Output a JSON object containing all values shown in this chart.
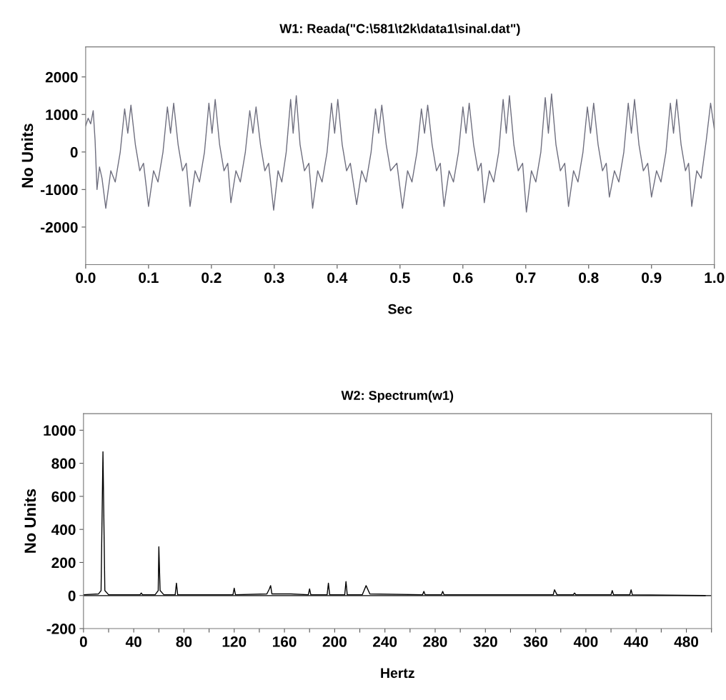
{
  "chart_data": [
    {
      "type": "line",
      "title": "W1: Reada(\"C:\\581\\t2k\\data1\\sinal.dat\")",
      "xlabel": "Sec",
      "ylabel": "No Units",
      "xlim": [
        0,
        1
      ],
      "ylim": [
        -3000,
        2800
      ],
      "xticks": [
        {
          "value": 0,
          "label": "0.0"
        },
        0.1,
        0.2,
        0.3,
        0.4,
        0.5,
        0.6,
        0.7,
        0.8,
        0.9,
        {
          "value": 1,
          "label": "1.0"
        }
      ],
      "yticks": [
        -2000,
        -1000,
        0,
        1000,
        2000
      ],
      "grid": false,
      "marker": "none",
      "line_style": "solid",
      "series": [
        {
          "color": "#6e6e7e",
          "x": [
            0,
            0.004,
            0.008,
            0.012,
            0.015,
            0.018,
            0.022,
            0.026,
            0.032,
            0.04,
            0.047,
            0.055,
            0.062,
            0.067,
            0.072,
            0.079,
            0.086,
            0.092,
            0.1,
            0.108,
            0.115,
            0.123,
            0.13,
            0.135,
            0.14,
            0.147,
            0.154,
            0.16,
            0.166,
            0.174,
            0.181,
            0.189,
            0.196,
            0.201,
            0.206,
            0.213,
            0.22,
            0.226,
            0.231,
            0.239,
            0.246,
            0.254,
            0.261,
            0.266,
            0.271,
            0.278,
            0.285,
            0.291,
            0.299,
            0.306,
            0.312,
            0.319,
            0.326,
            0.33,
            0.335,
            0.341,
            0.348,
            0.355,
            0.361,
            0.369,
            0.376,
            0.384,
            0.391,
            0.396,
            0.401,
            0.408,
            0.415,
            0.421,
            0.431,
            0.439,
            0.446,
            0.454,
            0.461,
            0.466,
            0.471,
            0.478,
            0.485,
            0.495,
            0.504,
            0.512,
            0.519,
            0.527,
            0.534,
            0.539,
            0.544,
            0.551,
            0.558,
            0.564,
            0.57,
            0.578,
            0.585,
            0.593,
            0.6,
            0.605,
            0.61,
            0.617,
            0.624,
            0.629,
            0.634,
            0.642,
            0.649,
            0.657,
            0.664,
            0.669,
            0.674,
            0.681,
            0.688,
            0.695,
            0.701,
            0.709,
            0.716,
            0.724,
            0.731,
            0.736,
            0.741,
            0.748,
            0.755,
            0.762,
            0.768,
            0.776,
            0.783,
            0.791,
            0.798,
            0.803,
            0.808,
            0.815,
            0.822,
            0.828,
            0.833,
            0.841,
            0.848,
            0.856,
            0.863,
            0.868,
            0.873,
            0.88,
            0.887,
            0.894,
            0.9,
            0.908,
            0.915,
            0.923,
            0.93,
            0.935,
            0.94,
            0.947,
            0.954,
            0.959,
            0.964,
            0.972,
            0.979,
            0.987,
            0.994,
            1.0
          ],
          "values": [
            700,
            900,
            750,
            1100,
            300,
            -1000,
            -400,
            -700,
            -1500,
            -500,
            -800,
            0,
            1150,
            500,
            1250,
            200,
            -500,
            -300,
            -1450,
            -500,
            -800,
            0,
            1200,
            500,
            1300,
            200,
            -500,
            -300,
            -1450,
            -500,
            -800,
            0,
            1300,
            500,
            1400,
            200,
            -500,
            -300,
            -1350,
            -500,
            -800,
            0,
            1100,
            500,
            1200,
            200,
            -500,
            -300,
            -1550,
            -500,
            -800,
            0,
            1400,
            500,
            1500,
            200,
            -500,
            -300,
            -1500,
            -500,
            -800,
            0,
            1300,
            500,
            1400,
            200,
            -500,
            -300,
            -1400,
            -500,
            -800,
            0,
            1150,
            500,
            1250,
            200,
            -500,
            -300,
            -1500,
            -500,
            -800,
            0,
            1150,
            500,
            1250,
            200,
            -500,
            -300,
            -1450,
            -500,
            -800,
            0,
            1200,
            500,
            1300,
            200,
            -500,
            -300,
            -1350,
            -500,
            -800,
            0,
            1400,
            500,
            1500,
            200,
            -500,
            -300,
            -1600,
            -500,
            -800,
            0,
            1450,
            500,
            1550,
            200,
            -500,
            -300,
            -1450,
            -500,
            -800,
            0,
            1200,
            500,
            1300,
            200,
            -500,
            -300,
            -1200,
            -500,
            -800,
            0,
            1300,
            500,
            1400,
            200,
            -500,
            -300,
            -1200,
            -500,
            -800,
            0,
            1300,
            500,
            1400,
            200,
            -500,
            -300,
            -1450,
            -500,
            -700,
            300,
            1300,
            600
          ]
        }
      ]
    },
    {
      "type": "line",
      "title": "W2: Spectrum(w1)",
      "xlabel": "Hertz",
      "ylabel": "No Units",
      "xlim": [
        0,
        500
      ],
      "ylim": [
        -200,
        1100
      ],
      "xticks": [
        0,
        {
          "value": 20,
          "label": null
        },
        40,
        {
          "value": 60,
          "label": null
        },
        80,
        {
          "value": 100,
          "label": null
        },
        120,
        {
          "value": 140,
          "label": null
        },
        160,
        {
          "value": 180,
          "label": null
        },
        200,
        {
          "value": 220,
          "label": null
        },
        240,
        {
          "value": 260,
          "label": null
        },
        280,
        {
          "value": 300,
          "label": null
        },
        320,
        {
          "value": 340,
          "label": null
        },
        360,
        {
          "value": 380,
          "label": null
        },
        400,
        {
          "value": 420,
          "label": null
        },
        440,
        {
          "value": 460,
          "label": null
        },
        480,
        {
          "value": 500,
          "label": null
        }
      ],
      "yticks": [
        -200,
        0,
        200,
        400,
        600,
        800,
        1000
      ],
      "grid": false,
      "marker": "none",
      "line_style": "solid",
      "ref_lines": [
        {
          "axis": "y",
          "value": 0,
          "color": "#000000",
          "line_style": "solid"
        }
      ],
      "series": [
        {
          "color": "#000000",
          "x": [
            0,
            12,
            14,
            15.5,
            17,
            20,
            45,
            46,
            47,
            57,
            59.5,
            60,
            61,
            64,
            73,
            74,
            75,
            119,
            120,
            121,
            146,
            148,
            149,
            150,
            165,
            179,
            180,
            181,
            194,
            195,
            196,
            208,
            209,
            210,
            222,
            225,
            228,
            270,
            271,
            272,
            285,
            286,
            287,
            374,
            375,
            377,
            390,
            391,
            392,
            420,
            421,
            422,
            435,
            436,
            437,
            495
          ],
          "values": [
            5,
            10,
            30,
            870,
            30,
            5,
            5,
            15,
            5,
            5,
            30,
            295,
            30,
            5,
            5,
            75,
            5,
            5,
            45,
            5,
            10,
            40,
            60,
            10,
            10,
            5,
            40,
            5,
            5,
            75,
            5,
            5,
            85,
            5,
            5,
            60,
            10,
            5,
            25,
            5,
            5,
            25,
            5,
            5,
            35,
            5,
            5,
            15,
            5,
            5,
            30,
            5,
            5,
            35,
            5,
            0
          ]
        }
      ]
    }
  ]
}
